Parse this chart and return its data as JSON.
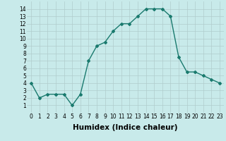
{
  "x": [
    0,
    1,
    2,
    3,
    4,
    5,
    6,
    7,
    8,
    9,
    10,
    11,
    12,
    13,
    14,
    15,
    16,
    17,
    18,
    19,
    20,
    21,
    22,
    23
  ],
  "y": [
    4,
    2,
    2.5,
    2.5,
    2.5,
    1,
    2.5,
    7,
    9,
    9.5,
    11,
    12,
    12,
    13,
    14,
    14,
    14,
    13,
    7.5,
    5.5,
    5.5,
    5,
    4.5,
    4
  ],
  "line_color": "#1a7a6e",
  "bg_color": "#c8eaea",
  "grid_color": "#b0cccc",
  "xlabel": "Humidex (Indice chaleur)",
  "ylim": [
    0,
    15
  ],
  "xlim": [
    -0.5,
    23.5
  ],
  "yticks": [
    1,
    2,
    3,
    4,
    5,
    6,
    7,
    8,
    9,
    10,
    11,
    12,
    13,
    14
  ],
  "xticks": [
    0,
    1,
    2,
    3,
    4,
    5,
    6,
    7,
    8,
    9,
    10,
    11,
    12,
    13,
    14,
    15,
    16,
    17,
    18,
    19,
    20,
    21,
    22,
    23
  ],
  "tick_fontsize": 5.5,
  "xlabel_fontsize": 7.5,
  "marker": "D",
  "marker_size": 2,
  "line_width": 1.0
}
